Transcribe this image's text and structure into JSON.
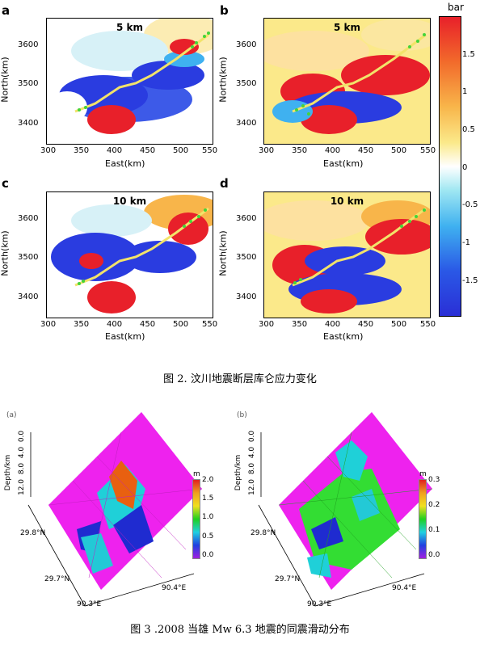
{
  "figure2": {
    "panels": [
      {
        "letter": "a",
        "depth_label": "5 km",
        "xlabel": "East(km)",
        "ylabel": "North(km)",
        "xticks": [
          "300",
          "350",
          "400",
          "450",
          "500",
          "550"
        ],
        "yticks": [
          "3600",
          "3500",
          "3400"
        ]
      },
      {
        "letter": "b",
        "depth_label": "5 km",
        "xlabel": "East(km)",
        "ylabel": "North(km)",
        "xticks": [
          "300",
          "350",
          "400",
          "450",
          "500",
          "550"
        ],
        "yticks": [
          "3600",
          "3500",
          "3400"
        ]
      },
      {
        "letter": "c",
        "depth_label": "10 km",
        "xlabel": "East(km)",
        "ylabel": "North(km)",
        "xticks": [
          "300",
          "350",
          "400",
          "450",
          "500",
          "550"
        ],
        "yticks": [
          "3600",
          "3500",
          "3400"
        ]
      },
      {
        "letter": "d",
        "depth_label": "10 km",
        "xlabel": "East(km)",
        "ylabel": "North(km)",
        "xticks": [
          "300",
          "350",
          "400",
          "450",
          "500",
          "550"
        ],
        "yticks": [
          "3600",
          "3500",
          "3400"
        ]
      }
    ],
    "colorbar": {
      "unit": "bar",
      "ticks": [
        "1.5",
        "1",
        "0.5",
        "0",
        "-0.5",
        "-1",
        "-1.5"
      ],
      "colors": [
        "#e8202a",
        "#f26a2b",
        "#f8b54a",
        "#fbe98a",
        "#ffffff",
        "#9fe7f2",
        "#3fb1f0",
        "#2a58e6",
        "#2a2fd6"
      ]
    },
    "caption": "图 2. 汶川地震断层库仑应力变化"
  },
  "figure3": {
    "panels": [
      {
        "label": "(a)",
        "depth_axis": "Depth/km",
        "depth_ticks": [
          "0.0",
          "4.0",
          "8.0",
          "12.0"
        ],
        "lat_ticks": [
          "29.8°N",
          "29.7°N"
        ],
        "lon_ticks": [
          "90.3°E",
          "90.4°E"
        ],
        "cbar_unit": "m",
        "cbar_ticks": [
          "2.0",
          "1.5",
          "1.0",
          "0.5",
          "0.0"
        ]
      },
      {
        "label": "(b)",
        "depth_axis": "Depth/km",
        "depth_ticks": [
          "0.0",
          "4.0",
          "8.0",
          "12.0"
        ],
        "lat_ticks": [
          "29.8°N",
          "29.7°N"
        ],
        "lon_ticks": [
          "90.3°E",
          "90.4°E"
        ],
        "cbar_unit": "m",
        "cbar_ticks": [
          "0.3",
          "0.2",
          "0.1",
          "0.0"
        ]
      }
    ],
    "caption": "图 3 .2008 当雄 Mw 6.3 地震的同震滑动分布"
  },
  "colors": {
    "stress_positive": "#e8202a",
    "stress_negative": "#2a3ce0",
    "fault_trace": "#f2e36a",
    "aftershock": "#44d43a",
    "slip_background": "#ee22ee"
  }
}
